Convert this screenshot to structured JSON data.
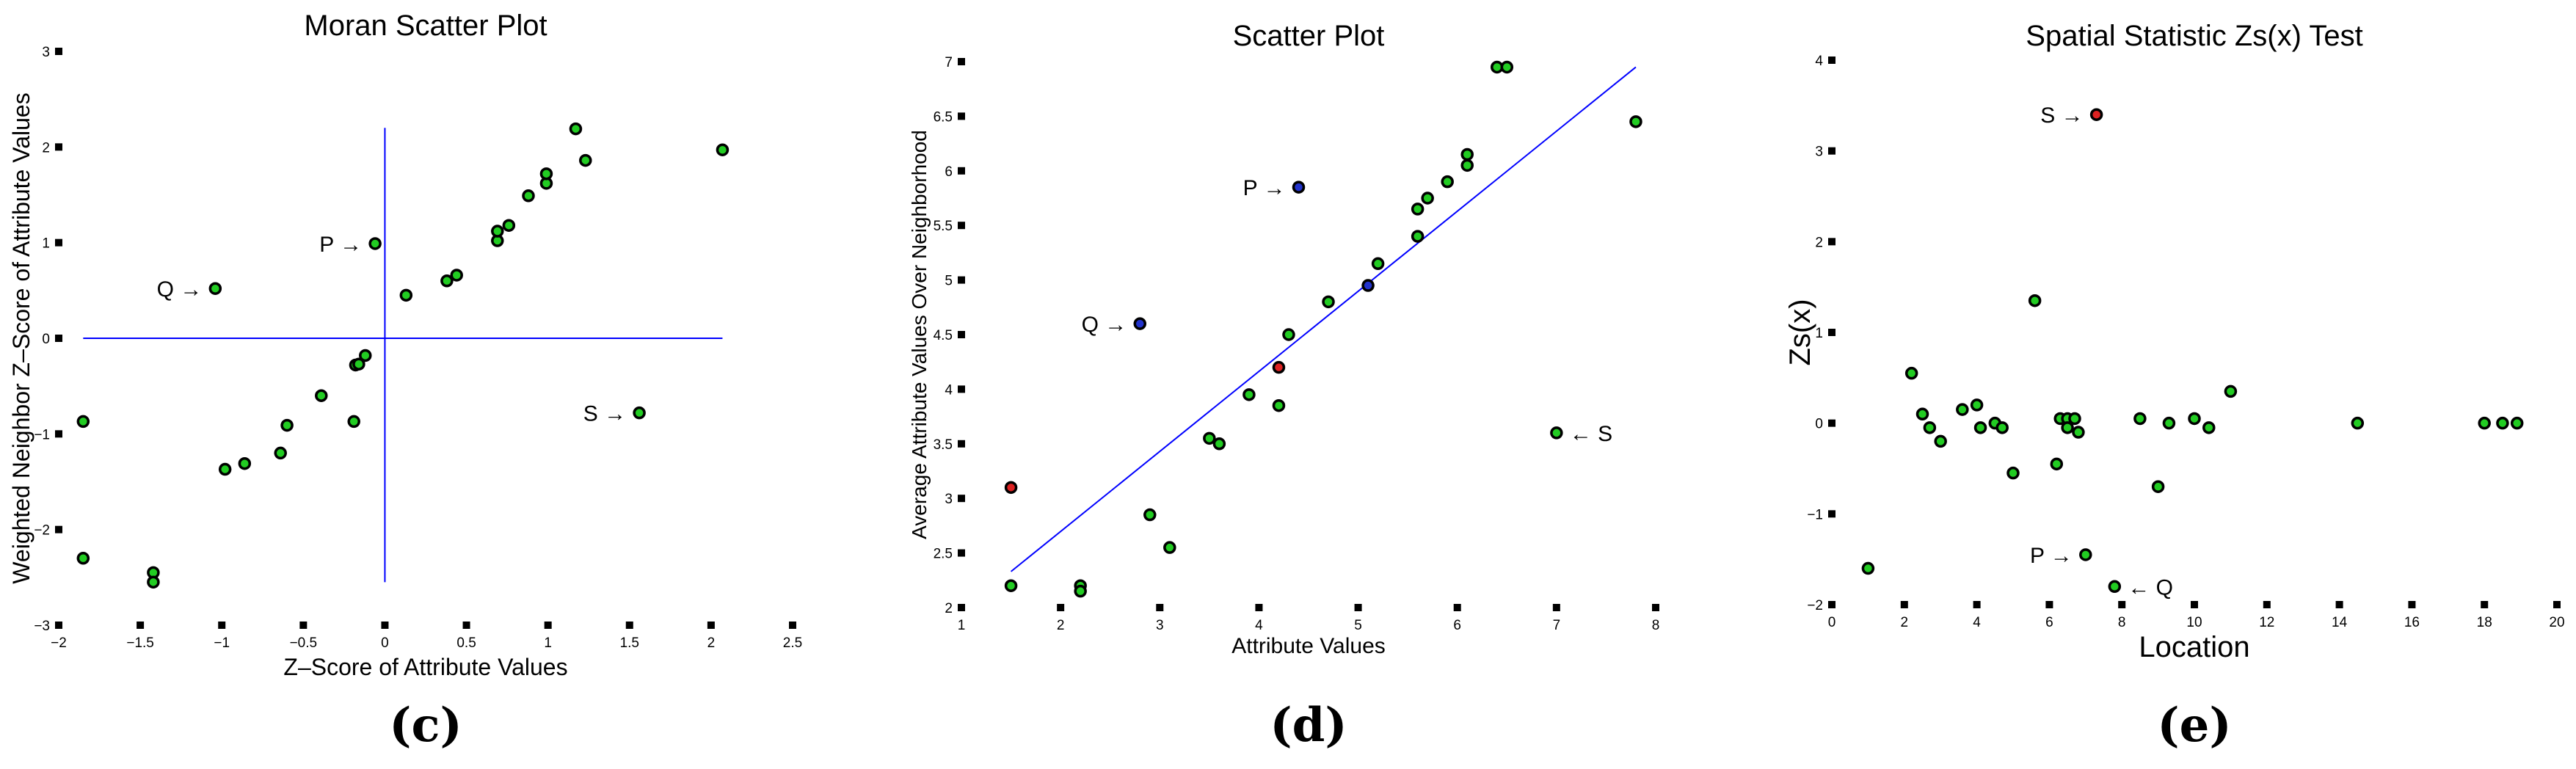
{
  "chart_data": [
    {
      "type": "scatter",
      "title": "Moran Scatter Plot",
      "xlabel": "Z–Score of Attribute Values",
      "ylabel": "Weighted Neighbor Z–Score of Attribute Values",
      "caption": "(c)",
      "xlim": [
        -2,
        2.5
      ],
      "ylim": [
        -3,
        3
      ],
      "xticks": [
        -2,
        -1.5,
        -1,
        -0.5,
        0,
        0.5,
        1,
        1.5,
        2,
        2.5
      ],
      "xtick_labels": [
        "−2",
        "−1.5",
        "−1",
        "−0.5",
        "0",
        "0.5",
        "1",
        "1.5",
        "2",
        "2.5"
      ],
      "yticks": [
        -3,
        -2,
        -1,
        0,
        1,
        2,
        3
      ],
      "ytick_labels": [
        "−3",
        "−2",
        "−1",
        "0",
        "1",
        "2",
        "3"
      ],
      "reference_lines": {
        "x": 0,
        "y": 0,
        "color": "#0000ff"
      },
      "grid": false,
      "series": [
        {
          "color": "#22cc22",
          "points": [
            [
              -1.85,
              -0.87
            ],
            [
              -1.85,
              -2.3
            ],
            [
              -1.42,
              -2.45
            ],
            [
              -1.42,
              -2.55
            ],
            [
              -1.04,
              0.52
            ],
            [
              -0.98,
              -1.37
            ],
            [
              -0.86,
              -1.31
            ],
            [
              -0.64,
              -1.2
            ],
            [
              -0.6,
              -0.91
            ],
            [
              -0.39,
              -0.6
            ],
            [
              -0.19,
              -0.87
            ],
            [
              -0.18,
              -0.28
            ],
            [
              -0.16,
              -0.27
            ],
            [
              -0.12,
              -0.18
            ],
            [
              -0.06,
              0.99
            ],
            [
              0.13,
              0.45
            ],
            [
              0.38,
              0.6
            ],
            [
              0.44,
              0.66
            ],
            [
              0.69,
              1.02
            ],
            [
              0.69,
              1.12
            ],
            [
              0.76,
              1.18
            ],
            [
              0.88,
              1.49
            ],
            [
              0.99,
              1.62
            ],
            [
              0.99,
              1.72
            ],
            [
              1.17,
              2.19
            ],
            [
              1.23,
              1.86
            ],
            [
              1.56,
              -0.78
            ],
            [
              2.07,
              1.97
            ]
          ]
        }
      ],
      "annotations": [
        {
          "text": "P →",
          "at": [
            -0.06,
            0.99
          ],
          "side": "left"
        },
        {
          "text": "Q →",
          "at": [
            -1.04,
            0.52
          ],
          "side": "left"
        },
        {
          "text": "S →",
          "at": [
            1.56,
            -0.78
          ],
          "side": "left"
        }
      ]
    },
    {
      "type": "scatter",
      "title": "Scatter Plot",
      "xlabel": "Attribute Values",
      "ylabel": "Average Attribute Values Over Neighborhood",
      "caption": "(d)",
      "xlim": [
        1,
        8
      ],
      "ylim": [
        2,
        7
      ],
      "xticks": [
        1,
        2,
        3,
        4,
        5,
        6,
        7,
        8
      ],
      "xtick_labels": [
        "1",
        "2",
        "3",
        "4",
        "5",
        "6",
        "7",
        "8"
      ],
      "yticks": [
        2,
        2.5,
        3,
        3.5,
        4,
        4.5,
        5,
        5.5,
        6,
        6.5,
        7
      ],
      "ytick_labels": [
        "2",
        "2.5",
        "3",
        "3.5",
        "4",
        "4.5",
        "5",
        "5.5",
        "6",
        "6.5",
        "7"
      ],
      "fit_line": {
        "from": [
          1.5,
          2.33
        ],
        "to": [
          7.8,
          6.95
        ],
        "color": "#0000ff"
      },
      "grid": false,
      "series": [
        {
          "color": "#22cc22",
          "points": [
            [
              1.5,
              2.2
            ],
            [
              2.2,
              2.2
            ],
            [
              2.2,
              2.15
            ],
            [
              2.9,
              2.85
            ],
            [
              3.1,
              2.55
            ],
            [
              3.5,
              3.55
            ],
            [
              3.6,
              3.5
            ],
            [
              3.9,
              3.95
            ],
            [
              4.2,
              3.85
            ],
            [
              4.3,
              4.5
            ],
            [
              4.7,
              4.8
            ],
            [
              5.2,
              5.15
            ],
            [
              5.6,
              5.4
            ],
            [
              5.6,
              5.65
            ],
            [
              5.7,
              5.75
            ],
            [
              5.9,
              5.9
            ],
            [
              6.1,
              6.05
            ],
            [
              6.1,
              6.15
            ],
            [
              6.4,
              6.95
            ],
            [
              6.5,
              6.95
            ],
            [
              7.0,
              3.6
            ],
            [
              7.8,
              6.45
            ]
          ]
        },
        {
          "color": "#2233cc",
          "points": [
            [
              2.8,
              4.6
            ],
            [
              4.4,
              5.85
            ],
            [
              5.1,
              4.95
            ]
          ]
        },
        {
          "color": "#dd2222",
          "points": [
            [
              1.5,
              3.1
            ],
            [
              4.2,
              4.2
            ]
          ]
        }
      ],
      "annotations": [
        {
          "text": "P →",
          "at": [
            4.4,
            5.85
          ],
          "side": "left"
        },
        {
          "text": "Q →",
          "at": [
            2.8,
            4.6
          ],
          "side": "left"
        },
        {
          "text": "← S",
          "at": [
            7.0,
            3.6
          ],
          "side": "right"
        }
      ]
    },
    {
      "type": "scatter",
      "title": "Spatial Statistic Zs(x) Test",
      "xlabel": "Location",
      "ylabel": "Zs(x)",
      "caption": "(e)",
      "xlim": [
        0,
        20
      ],
      "ylim": [
        -2,
        4
      ],
      "xticks": [
        0,
        2,
        4,
        6,
        8,
        10,
        12,
        14,
        16,
        18,
        20
      ],
      "xtick_labels": [
        "0",
        "2",
        "4",
        "6",
        "8",
        "10",
        "12",
        "14",
        "16",
        "18",
        "20"
      ],
      "yticks": [
        -2,
        -1,
        0,
        1,
        2,
        3,
        4
      ],
      "ytick_labels": [
        "−2",
        "−1",
        "0",
        "1",
        "2",
        "3",
        "4"
      ],
      "grid": false,
      "series": [
        {
          "color": "#22cc22",
          "points": [
            [
              1.0,
              -1.6
            ],
            [
              2.2,
              0.55
            ],
            [
              2.5,
              0.1
            ],
            [
              2.7,
              -0.05
            ],
            [
              3.0,
              -0.2
            ],
            [
              3.6,
              0.15
            ],
            [
              4.0,
              0.2
            ],
            [
              4.1,
              -0.05
            ],
            [
              4.5,
              0.0
            ],
            [
              4.7,
              -0.05
            ],
            [
              5.0,
              -0.55
            ],
            [
              5.6,
              1.35
            ],
            [
              6.2,
              -0.45
            ],
            [
              6.3,
              0.05
            ],
            [
              6.5,
              0.05
            ],
            [
              6.5,
              -0.05
            ],
            [
              6.7,
              0.05
            ],
            [
              6.8,
              -0.1
            ],
            [
              7.0,
              -1.45
            ],
            [
              7.8,
              -1.8
            ],
            [
              8.5,
              0.05
            ],
            [
              9.0,
              -0.7
            ],
            [
              9.3,
              0.0
            ],
            [
              10.0,
              0.05
            ],
            [
              10.4,
              -0.05
            ],
            [
              11.0,
              0.35
            ],
            [
              14.5,
              0.0
            ],
            [
              18.0,
              0.0
            ],
            [
              18.5,
              0.0
            ],
            [
              18.9,
              0.0
            ]
          ]
        },
        {
          "color": "#dd2222",
          "points": [
            [
              7.3,
              3.4
            ]
          ]
        }
      ],
      "annotations": [
        {
          "text": "S →",
          "at": [
            7.3,
            3.4
          ],
          "side": "left"
        },
        {
          "text": "P →",
          "at": [
            7.0,
            -1.45
          ],
          "side": "left"
        },
        {
          "text": "← Q",
          "at": [
            7.8,
            -1.8
          ],
          "side": "right"
        }
      ]
    }
  ]
}
